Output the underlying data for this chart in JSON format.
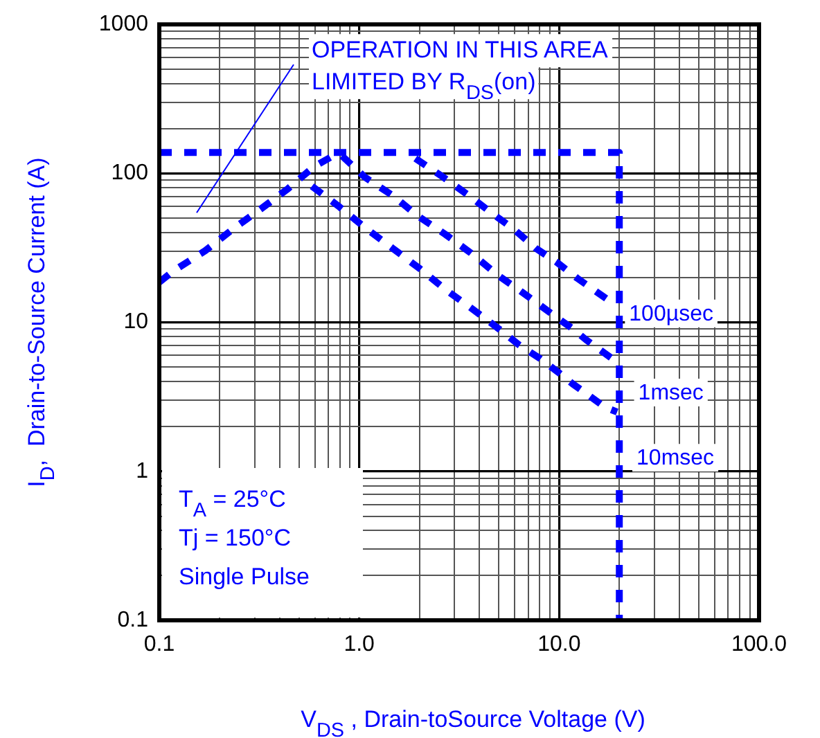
{
  "chart_data": {
    "type": "line",
    "xlabel": "V$_{DS}$ , Drain-toSource Voltage (V)",
    "ylabel": "I$_{D}$,  Drain-to-Source Current (A)",
    "log": "xy",
    "xlim": [
      0.1,
      100
    ],
    "ylim": [
      0.1,
      1000
    ],
    "xticks": [
      {
        "value": 0.1,
        "label": "0.1"
      },
      {
        "value": 0.2,
        "label": null
      },
      {
        "value": 0.3,
        "label": null
      },
      {
        "value": 0.4,
        "label": null
      },
      {
        "value": 0.5,
        "label": null
      },
      {
        "value": 0.6,
        "label": null
      },
      {
        "value": 0.7,
        "label": null
      },
      {
        "value": 0.8,
        "label": null
      },
      {
        "value": 0.9,
        "label": null
      },
      {
        "value": 1,
        "label": "1.0"
      },
      {
        "value": 2,
        "label": null
      },
      {
        "value": 3,
        "label": null
      },
      {
        "value": 4,
        "label": null
      },
      {
        "value": 5,
        "label": null
      },
      {
        "value": 6,
        "label": null
      },
      {
        "value": 7,
        "label": null
      },
      {
        "value": 8,
        "label": null
      },
      {
        "value": 9,
        "label": null
      },
      {
        "value": 10,
        "label": "10.0"
      },
      {
        "value": 20,
        "label": null
      },
      {
        "value": 30,
        "label": null
      },
      {
        "value": 40,
        "label": null
      },
      {
        "value": 50,
        "label": null
      },
      {
        "value": 60,
        "label": null
      },
      {
        "value": 70,
        "label": null
      },
      {
        "value": 80,
        "label": null
      },
      {
        "value": 90,
        "label": null
      },
      {
        "value": 100,
        "label": "100.0"
      }
    ],
    "yticks": [
      0.1,
      {
        "value": 0.2,
        "label": null
      },
      {
        "value": 0.3,
        "label": null
      },
      {
        "value": 0.4,
        "label": null
      },
      {
        "value": 0.5,
        "label": null
      },
      {
        "value": 0.6,
        "label": null
      },
      {
        "value": 0.7,
        "label": null
      },
      {
        "value": 0.8,
        "label": null
      },
      {
        "value": 0.9,
        "label": null
      },
      1,
      {
        "value": 2,
        "label": null
      },
      {
        "value": 3,
        "label": null
      },
      {
        "value": 4,
        "label": null
      },
      {
        "value": 5,
        "label": null
      },
      {
        "value": 6,
        "label": null
      },
      {
        "value": 7,
        "label": null
      },
      {
        "value": 8,
        "label": null
      },
      {
        "value": 9,
        "label": null
      },
      10,
      {
        "value": 20,
        "label": null
      },
      {
        "value": 30,
        "label": null
      },
      {
        "value": 40,
        "label": null
      },
      {
        "value": 50,
        "label": null
      },
      {
        "value": 60,
        "label": null
      },
      {
        "value": 70,
        "label": null
      },
      {
        "value": 80,
        "label": null
      },
      {
        "value": 90,
        "label": null
      },
      100,
      {
        "value": 200,
        "label": null
      },
      {
        "value": 300,
        "label": null
      },
      {
        "value": 400,
        "label": null
      },
      {
        "value": 500,
        "label": null
      },
      {
        "value": 600,
        "label": null
      },
      {
        "value": 700,
        "label": null
      },
      {
        "value": 800,
        "label": null
      },
      {
        "value": 900,
        "label": null
      },
      1000
    ],
    "grid": true,
    "legend": false,
    "marker": "none",
    "line_style": "dashed",
    "series": [
      {
        "color": "#0000ff",
        "x": [
          0.1,
          0.117,
          0.17,
          0.24,
          0.321,
          0.441,
          0.594,
          0.77
        ],
        "values": [
          18.6,
          22,
          30.3,
          43.5,
          57.5,
          79,
          111,
          135
        ]
      },
      {
        "name": "100µsec",
        "color": "#0000ff",
        "x": [
          1.91,
          2.64,
          3.53,
          4.73,
          6.0,
          7.64,
          9.7,
          12.3,
          17.9
        ],
        "values": [
          126,
          94,
          71,
          52.7,
          41.7,
          31.4,
          25.4,
          19.8,
          13.9
        ]
      },
      {
        "name": "1msec",
        "color": "#0000ff",
        "x": [
          0.82,
          1.07,
          1.47,
          1.97,
          2.7,
          3.62,
          4.99,
          6.5,
          7.8,
          9.7,
          11.7,
          13.7,
          16.5,
          19.9
        ],
        "values": [
          131,
          94,
          71,
          51.6,
          38.9,
          29.2,
          20.5,
          16,
          13.4,
          10.8,
          9.05,
          7.6,
          6.35,
          5.3
        ]
      },
      {
        "name": "10msec",
        "color": "#0000ff",
        "x": [
          0.58,
          0.796,
          1.07,
          1.47,
          2.02,
          2.7,
          3.62,
          4.99,
          6.3,
          8.05,
          9.95,
          11.7,
          14.1,
          16.9,
          19.5
        ],
        "values": [
          82,
          59.6,
          43.2,
          31.4,
          22.8,
          16.6,
          12.5,
          9.05,
          7.06,
          5.7,
          4.6,
          3.86,
          3.23,
          2.7,
          2.5
        ]
      },
      {
        "color": "#0000ff",
        "x": [
          0.1,
          20,
          20
        ],
        "values": [
          138,
          138,
          0.1
        ]
      }
    ],
    "annotations": [
      "OPERATION IN THIS AREA LIMITED BY R$_{DS}$(on)",
      "T$_{A}$ = 25°C",
      "Tj = 150°C",
      "Single Pulse"
    ]
  }
}
